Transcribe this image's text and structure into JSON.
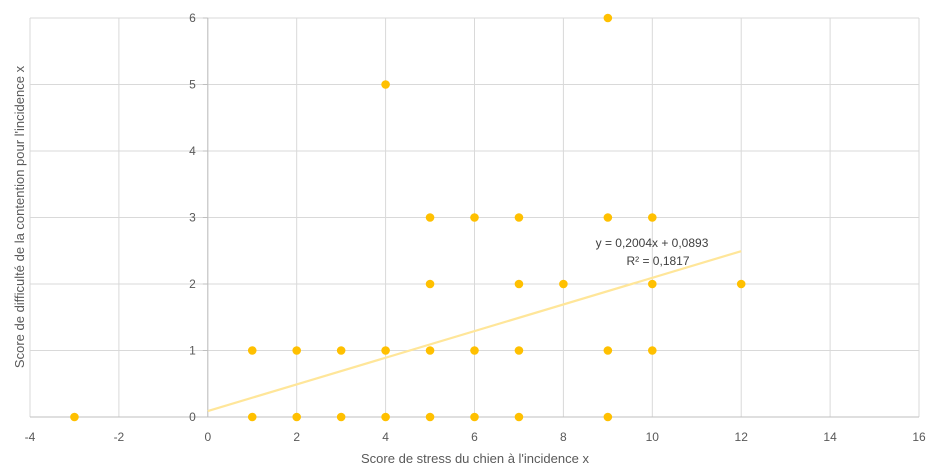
{
  "chart_data": {
    "type": "scatter",
    "title": "",
    "xlabel": "Score de stress du chien à l'incidence x",
    "ylabel": "Score de difficulté de la contention pour l'incidence x",
    "xlim": [
      -4,
      16
    ],
    "ylim": [
      0,
      6
    ],
    "x_ticks": [
      "-4",
      "-2",
      "0",
      "2",
      "4",
      "6",
      "8",
      "10",
      "12",
      "14",
      "16"
    ],
    "y_ticks": [
      "0",
      "1",
      "2",
      "3",
      "4",
      "5",
      "6"
    ],
    "grid": true,
    "legend": "none",
    "marker_color": "#FFC000",
    "trendline_color": "#FFE699",
    "series": [
      {
        "points": [
          [
            -3,
            0
          ],
          [
            1,
            0
          ],
          [
            2,
            0
          ],
          [
            3,
            0
          ],
          [
            4,
            0
          ],
          [
            5,
            0
          ],
          [
            6,
            0
          ],
          [
            7,
            0
          ],
          [
            9,
            0
          ],
          [
            1,
            1
          ],
          [
            2,
            1
          ],
          [
            3,
            1
          ],
          [
            4,
            1
          ],
          [
            5,
            1
          ],
          [
            6,
            1
          ],
          [
            7,
            1
          ],
          [
            9,
            1
          ],
          [
            10,
            1
          ],
          [
            5,
            2
          ],
          [
            7,
            2
          ],
          [
            8,
            2
          ],
          [
            10,
            2
          ],
          [
            12,
            2
          ],
          [
            5,
            3
          ],
          [
            6,
            3
          ],
          [
            7,
            3
          ],
          [
            9,
            3
          ],
          [
            10,
            3
          ],
          [
            4,
            5
          ],
          [
            9,
            6
          ]
        ]
      }
    ],
    "trendline": {
      "slope": 0.2004,
      "intercept": 0.0893,
      "x_range": [
        0,
        12
      ],
      "equation": "y = 0,2004x + 0,0893",
      "r2": "R² = 0,1817"
    }
  }
}
